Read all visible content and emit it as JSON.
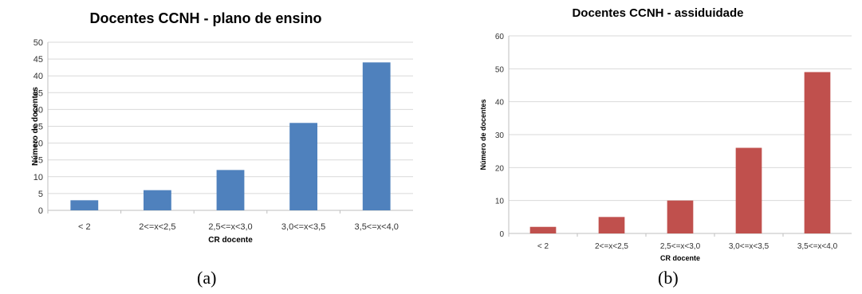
{
  "chart_data": [
    {
      "type": "bar",
      "title": "Docentes CCNH - plano de ensino",
      "xlabel": "CR docente",
      "ylabel": "Número de docentes",
      "categories": [
        "< 2",
        "2<=x<2,5",
        "2,5<=x<3,0",
        "3,0<=x<3,5",
        "3,5<=x<4,0"
      ],
      "values": [
        3,
        6,
        12,
        26,
        44
      ],
      "ylim": [
        0,
        50
      ],
      "yticks": [
        0,
        5,
        10,
        15,
        20,
        25,
        30,
        35,
        40,
        45,
        50
      ],
      "grid": true,
      "color": "#4f81bd",
      "caption": "(a)"
    },
    {
      "type": "bar",
      "title": "Docentes CCNH - assiduidade",
      "xlabel": "CR docente",
      "ylabel": "Número de docentes",
      "categories": [
        "< 2",
        "2<=x<2,5",
        "2,5<=x<3,0",
        "3,0<=x<3,5",
        "3,5<=x<4,0"
      ],
      "values": [
        2,
        5,
        10,
        26,
        49
      ],
      "ylim": [
        0,
        60
      ],
      "yticks": [
        0,
        10,
        20,
        30,
        40,
        50,
        60
      ],
      "grid": true,
      "color": "#c0504d",
      "caption": "(b)"
    }
  ]
}
